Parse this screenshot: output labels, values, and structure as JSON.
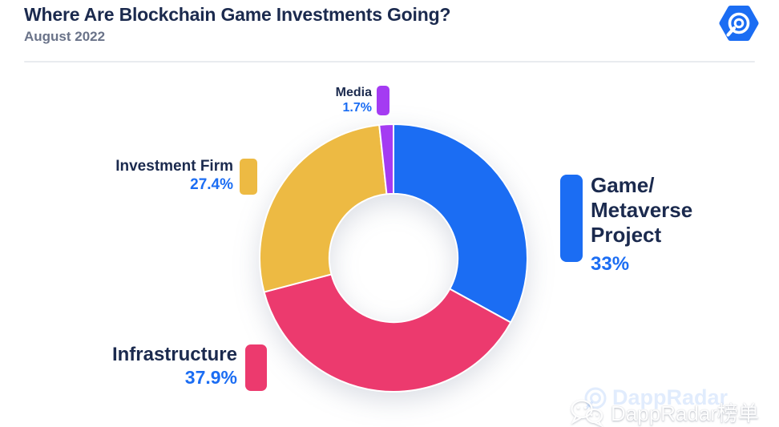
{
  "header": {
    "title": "Where Are Blockchain Game Investments Going?",
    "subtitle": "August 2022",
    "logo": "dappradar-hexagon-logo"
  },
  "chart_data": {
    "type": "pie",
    "donut": true,
    "title": "Where Are Blockchain Game Investments Going?",
    "subtitle": "August 2022",
    "start_angle_deg": 0,
    "direction": "clockwise",
    "inner_radius_ratio": 0.48,
    "segments": [
      {
        "label": "Game/Metaverse Project",
        "value": 33,
        "display": "33%",
        "color": "#1B6DF3"
      },
      {
        "label": "Infrastructure",
        "value": 37.9,
        "display": "37.9%",
        "color": "#EC3A6E"
      },
      {
        "label": "Investment Firm",
        "value": 27.4,
        "display": "27.4%",
        "color": "#EDBA43"
      },
      {
        "label": "Media",
        "value": 1.7,
        "display": "1.7%",
        "color": "#A43BF2"
      }
    ],
    "legend_position": "around-chart",
    "grid": false
  },
  "labels": {
    "media": {
      "name": "Media",
      "pct": "1.7%"
    },
    "investment_firm": {
      "name": "Investment Firm",
      "pct": "27.4%"
    },
    "game_metaverse": {
      "name": "Game/\nMetaverse\nProject",
      "pct": "33%"
    },
    "infrastructure": {
      "name": "Infrastructure",
      "pct": "37.9%"
    }
  },
  "watermarks": {
    "brand": "DappRadar",
    "wechat_account": "DappRadar榜单"
  },
  "colors": {
    "title_navy": "#1B2A4E",
    "subtitle_gray": "#6A7389",
    "accent_blue": "#1B6DF3",
    "divider": "#E9EBEF",
    "background": "#FFFFFF"
  }
}
